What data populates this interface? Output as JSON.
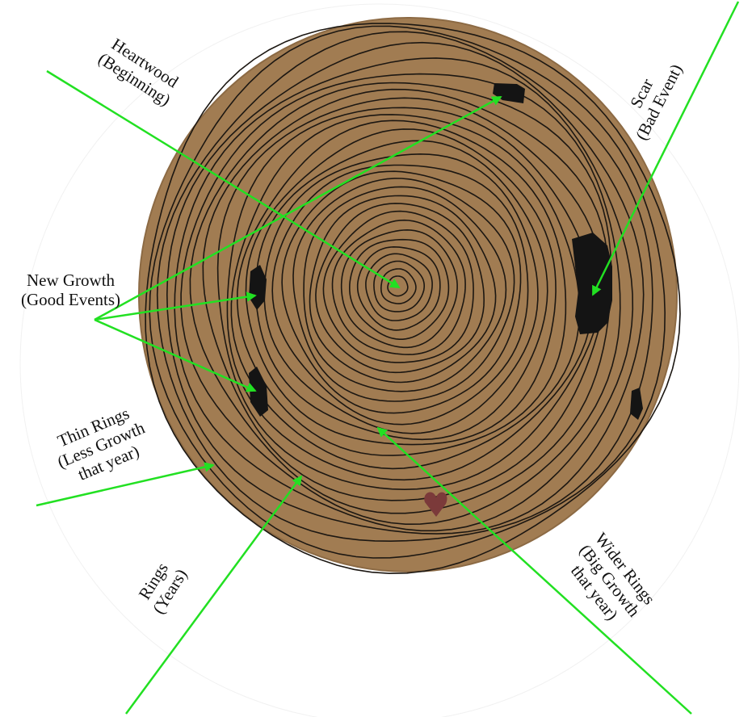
{
  "labels": {
    "heartwood": {
      "line1": "Heartwood",
      "line2": "(Beginning)"
    },
    "scar": {
      "line1": "Scar",
      "line2": "(Bad Event)"
    },
    "new_growth": {
      "line1": "New Growth",
      "line2": "(Good Events)"
    },
    "thin_rings": {
      "line1": "Thin Rings",
      "line2": "(Less Growth",
      "line3": "that year)"
    },
    "rings": {
      "line1": "Rings",
      "line2": "(Years)"
    },
    "wider_rings": {
      "line1": "Wider Rings",
      "line2": "(Big Growth",
      "line3": "that year)"
    }
  },
  "colors": {
    "background": "#ffffff",
    "cardboard": "#a17c52",
    "ring_ink": "#1c1712",
    "arrow": "#22e022",
    "text": "#111111"
  }
}
